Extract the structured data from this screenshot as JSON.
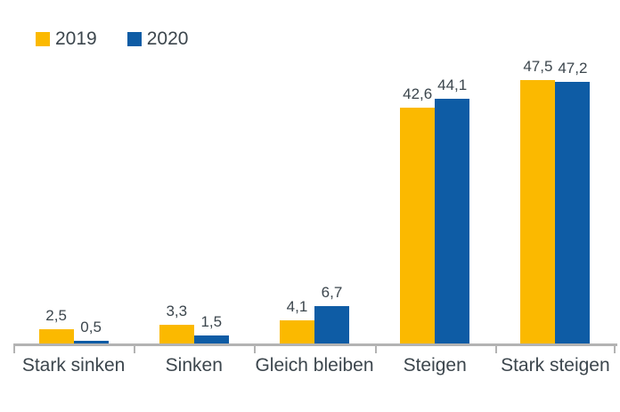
{
  "legend": {
    "position": "top-left"
  },
  "colors": {
    "background": "#FFFFFF",
    "text": "#3C464D",
    "axis": "#B3B3B3",
    "series_2019": "#FBB900",
    "series_2020": "#0E5CA5"
  },
  "chart_data": {
    "type": "bar",
    "title": "",
    "xlabel": "",
    "ylabel": "",
    "grid": false,
    "legend_position": "top-left",
    "decimal_separator": ",",
    "categories": [
      "Stark sinken",
      "Sinken",
      "Gleich bleiben",
      "Steigen",
      "Stark steigen"
    ],
    "series": [
      {
        "name": "2019",
        "color": "#FBB900",
        "values": [
          2.5,
          3.3,
          4.1,
          42.6,
          47.5
        ],
        "labels": [
          "2,5",
          "3,3",
          "4,1",
          "42,6",
          "47,5"
        ]
      },
      {
        "name": "2020",
        "color": "#0E5CA5",
        "values": [
          0.5,
          1.5,
          6.7,
          44.1,
          47.2
        ],
        "labels": [
          "0,5",
          "1,5",
          "6,7",
          "44,1",
          "47,2"
        ]
      }
    ],
    "ylim": [
      0,
      47.5
    ]
  }
}
